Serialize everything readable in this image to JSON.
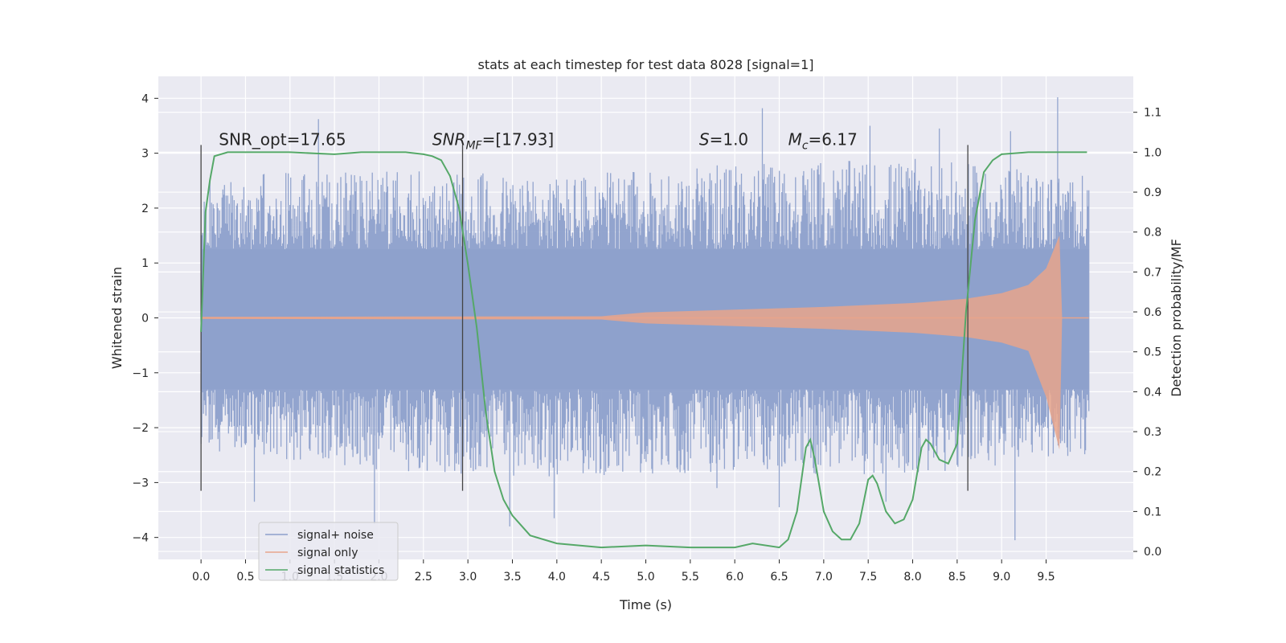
{
  "chart_data": {
    "type": "line",
    "title": "stats at each timestep for test data 8028 [signal=1]",
    "xlabel": "Time (s)",
    "ylabel": "Whitened strain",
    "y2label": "Detection probability/MF",
    "xlim": [
      -0.48,
      10.48
    ],
    "ylim": [
      -4.4,
      4.4
    ],
    "y2lim": [
      -0.02,
      1.19
    ],
    "xticks": [
      0.0,
      0.5,
      1.0,
      1.5,
      2.0,
      2.5,
      3.0,
      3.5,
      4.0,
      4.5,
      5.0,
      5.5,
      6.0,
      6.5,
      7.0,
      7.5,
      8.0,
      8.5,
      9.0,
      9.5
    ],
    "xtick_labels": [
      "0.0",
      "0.5",
      "1.0",
      "1.5",
      "2.0",
      "2.5",
      "3.0",
      "3.5",
      "4.0",
      "4.5",
      "5.0",
      "5.5",
      "6.0",
      "6.5",
      "7.0",
      "7.5",
      "8.0",
      "8.5",
      "9.0",
      "9.5"
    ],
    "yticks": [
      -4,
      -3,
      -2,
      -1,
      0,
      1,
      2,
      3,
      4
    ],
    "ytick_labels": [
      "−4",
      "−3",
      "−2",
      "−1",
      "0",
      "1",
      "2",
      "3",
      "4"
    ],
    "y2ticks": [
      0.0,
      0.1,
      0.2,
      0.3,
      0.4,
      0.5,
      0.6,
      0.7,
      0.8,
      0.9,
      1.0,
      1.1
    ],
    "y2tick_labels": [
      "0.0",
      "0.1",
      "0.2",
      "0.3",
      "0.4",
      "0.5",
      "0.6",
      "0.7",
      "0.8",
      "0.9",
      "1.0",
      "1.1"
    ],
    "grid": true,
    "legend_position": "lower-left",
    "vlines": [
      0.0,
      2.94,
      8.62
    ],
    "vline_range": [
      -3.15,
      3.15
    ],
    "annotations": [
      {
        "x": 0.2,
        "y": 3.15,
        "text": "SNR_opt=17.65"
      },
      {
        "x": 2.6,
        "y": 3.15,
        "main": "SNR",
        "sub": "MF",
        "rest": "=[17.93]"
      },
      {
        "x": 5.6,
        "y": 3.15,
        "main": "S",
        "sub": "",
        "rest": "=1.0"
      },
      {
        "x": 6.6,
        "y": 3.15,
        "main": "M",
        "sub": "c",
        "rest": "=6.17"
      }
    ],
    "series": [
      {
        "name": "signal+ noise",
        "color": "#8da0cb",
        "axis": "left",
        "x_range": [
          0.0,
          9.98
        ],
        "band_envelope": {
          "x": [
            0.0,
            2.0,
            4.0,
            6.0,
            8.0,
            9.98
          ],
          "upper": [
            1.25,
            1.25,
            1.25,
            1.25,
            1.25,
            1.25
          ],
          "lower": [
            -1.3,
            -1.3,
            -1.3,
            -1.3,
            -1.3,
            -1.3
          ]
        },
        "peak_envelope": {
          "x": [
            0.0,
            2.0,
            4.0,
            6.0,
            8.0,
            9.98
          ],
          "upper": [
            2.6,
            2.7,
            2.6,
            2.8,
            2.9,
            2.6
          ],
          "lower": [
            -2.4,
            -2.8,
            -2.9,
            -2.8,
            -2.9,
            -2.5
          ]
        },
        "notable_peaks": [
          {
            "x": 1.32,
            "y": 3.62
          },
          {
            "x": 6.31,
            "y": 3.82
          },
          {
            "x": 7.52,
            "y": 3.5
          },
          {
            "x": 9.63,
            "y": 4.02
          },
          {
            "x": 9.1,
            "y": 3.4
          },
          {
            "x": 8.3,
            "y": 3.45
          },
          {
            "x": 1.95,
            "y": -3.75
          },
          {
            "x": 3.47,
            "y": -3.8
          },
          {
            "x": 3.97,
            "y": -3.65
          },
          {
            "x": 9.15,
            "y": -4.05
          },
          {
            "x": 7.7,
            "y": -3.35
          },
          {
            "x": 0.6,
            "y": -3.35
          },
          {
            "x": 5.8,
            "y": -3.1
          },
          {
            "x": 6.5,
            "y": -3.45
          }
        ]
      },
      {
        "name": "signal only",
        "color": "#e8a48b",
        "axis": "left",
        "envelope": {
          "x": [
            0.0,
            4.5,
            5.0,
            6.0,
            7.0,
            8.0,
            8.6,
            9.0,
            9.3,
            9.5,
            9.6,
            9.65,
            9.68,
            9.98
          ],
          "amplitude": [
            0.02,
            0.03,
            0.1,
            0.15,
            0.2,
            0.27,
            0.35,
            0.45,
            0.6,
            0.9,
            1.3,
            1.5,
            0.0,
            0.0
          ]
        }
      },
      {
        "name": "signal statistics",
        "color": "#55a868",
        "axis": "right",
        "x": [
          0.0,
          0.05,
          0.1,
          0.15,
          0.3,
          0.5,
          1.0,
          1.5,
          1.8,
          2.0,
          2.3,
          2.5,
          2.6,
          2.7,
          2.8,
          2.9,
          3.0,
          3.1,
          3.2,
          3.3,
          3.4,
          3.5,
          3.7,
          4.0,
          4.5,
          5.0,
          5.5,
          6.0,
          6.2,
          6.5,
          6.6,
          6.7,
          6.8,
          6.85,
          6.9,
          7.0,
          7.1,
          7.2,
          7.3,
          7.4,
          7.5,
          7.55,
          7.6,
          7.7,
          7.8,
          7.9,
          8.0,
          8.1,
          8.15,
          8.2,
          8.3,
          8.4,
          8.5,
          8.6,
          8.7,
          8.8,
          8.9,
          9.0,
          9.3,
          9.96
        ],
        "y": [
          0.55,
          0.85,
          0.93,
          0.99,
          1.0,
          1.0,
          1.0,
          0.995,
          1.0,
          1.0,
          1.0,
          0.995,
          0.99,
          0.98,
          0.94,
          0.86,
          0.72,
          0.56,
          0.35,
          0.2,
          0.13,
          0.09,
          0.04,
          0.02,
          0.01,
          0.015,
          0.01,
          0.01,
          0.02,
          0.01,
          0.03,
          0.1,
          0.26,
          0.28,
          0.23,
          0.1,
          0.05,
          0.03,
          0.03,
          0.07,
          0.18,
          0.19,
          0.17,
          0.1,
          0.07,
          0.08,
          0.13,
          0.26,
          0.28,
          0.27,
          0.23,
          0.22,
          0.27,
          0.6,
          0.83,
          0.95,
          0.98,
          0.995,
          1.0,
          1.0
        ]
      }
    ]
  }
}
